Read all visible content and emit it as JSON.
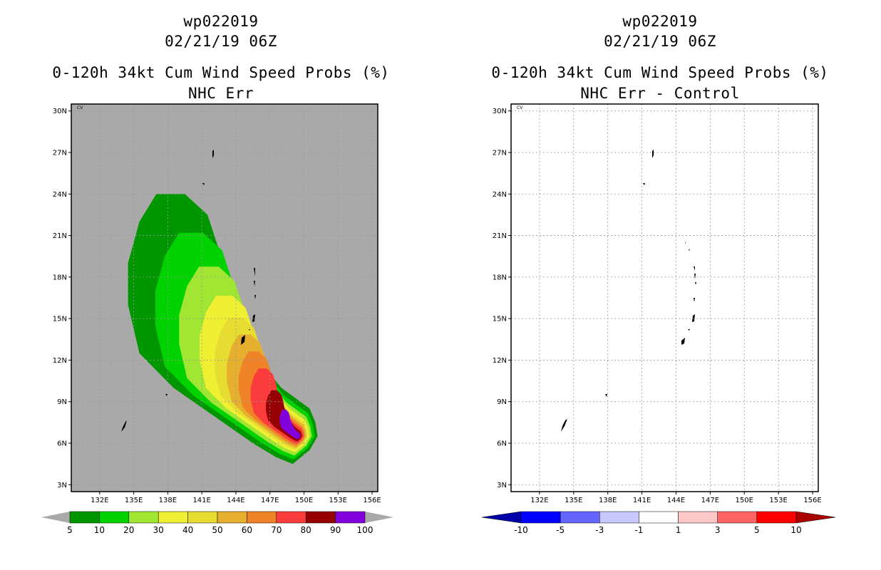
{
  "panels": [
    {
      "title_line1": "wp022019",
      "title_line2": "02/21/19 06Z",
      "title_line3": "0-120h 34kt Cum Wind Speed Probs (%)",
      "title_line4": "NHC Err",
      "corner_label": "CV"
    },
    {
      "title_line1": "wp022019",
      "title_line2": "02/21/19 06Z",
      "title_line3": "0-120h 34kt Cum Wind Speed Probs (%)",
      "title_line4": "NHC Err - Control",
      "corner_label": "CV"
    }
  ],
  "chart_data": [
    {
      "type": "heatmap",
      "title": "0-120h 34kt Cum Wind Speed Probs (%)",
      "subtitle": "NHC Err",
      "storm": "wp022019",
      "time": "02/21/19 06Z",
      "xlim": [
        129.5,
        156.5
      ],
      "ylim": [
        2.5,
        30.5
      ],
      "x_ticks": [
        132,
        135,
        138,
        141,
        144,
        147,
        150,
        153,
        156
      ],
      "x_tick_labels": [
        "132E",
        "135E",
        "138E",
        "141E",
        "144E",
        "147E",
        "150E",
        "153E",
        "156E"
      ],
      "y_ticks": [
        3,
        6,
        9,
        12,
        15,
        18,
        21,
        24,
        27,
        30
      ],
      "y_tick_labels": [
        "3N",
        "6N",
        "9N",
        "12N",
        "15N",
        "18N",
        "21N",
        "24N",
        "27N",
        "30N"
      ],
      "background_color": "#a9a9a9",
      "colorbar": {
        "labels": [
          "5",
          "10",
          "20",
          "30",
          "40",
          "50",
          "60",
          "70",
          "80",
          "90",
          "100"
        ],
        "colors": [
          "#009600",
          "#00d200",
          "#a0e632",
          "#f0f032",
          "#e6dc32",
          "#e6af2d",
          "#f08228",
          "#fa3c3c",
          "#960000",
          "#8200dc"
        ]
      },
      "contours": [
        {
          "level": 5,
          "color": "#009600",
          "scale": 1.0
        },
        {
          "level": 10,
          "color": "#00d200",
          "scale": 0.84
        },
        {
          "level": 20,
          "color": "#a0e632",
          "scale": 0.7
        },
        {
          "level": 30,
          "color": "#f0f032",
          "scale": 0.58
        },
        {
          "level": 40,
          "color": "#e6dc32",
          "scale": 0.49
        },
        {
          "level": 50,
          "color": "#e6af2d",
          "scale": 0.42
        },
        {
          "level": 60,
          "color": "#f08228",
          "scale": 0.35
        },
        {
          "level": 70,
          "color": "#fa3c3c",
          "scale": 0.28
        },
        {
          "level": 80,
          "color": "#960000",
          "scale": 0.19
        },
        {
          "level": 90,
          "color": "#8200dc",
          "scale": 0.11
        }
      ]
    },
    {
      "type": "heatmap",
      "title": "0-120h 34kt Cum Wind Speed Probs (%)",
      "subtitle": "NHC Err - Control",
      "storm": "wp022019",
      "time": "02/21/19 06Z",
      "xlim": [
        129.5,
        156.5
      ],
      "ylim": [
        2.5,
        30.5
      ],
      "x_ticks": [
        132,
        135,
        138,
        141,
        144,
        147,
        150,
        153,
        156
      ],
      "x_tick_labels": [
        "132E",
        "135E",
        "138E",
        "141E",
        "144E",
        "147E",
        "150E",
        "153E",
        "156E"
      ],
      "y_ticks": [
        3,
        6,
        9,
        12,
        15,
        18,
        21,
        24,
        27,
        30
      ],
      "y_tick_labels": [
        "3N",
        "6N",
        "9N",
        "12N",
        "15N",
        "18N",
        "21N",
        "24N",
        "27N",
        "30N"
      ],
      "background_color": "#ffffff",
      "colorbar": {
        "labels": [
          "-10",
          "-5",
          "-3",
          "-1",
          "1",
          "3",
          "5",
          "10"
        ],
        "colors": [
          "#0000aa",
          "#0000ff",
          "#6464ff",
          "#c8c8ff",
          "#ffffff",
          "#ffc8c8",
          "#ff6464",
          "#ff0000",
          "#aa0000"
        ]
      },
      "contours": []
    }
  ]
}
